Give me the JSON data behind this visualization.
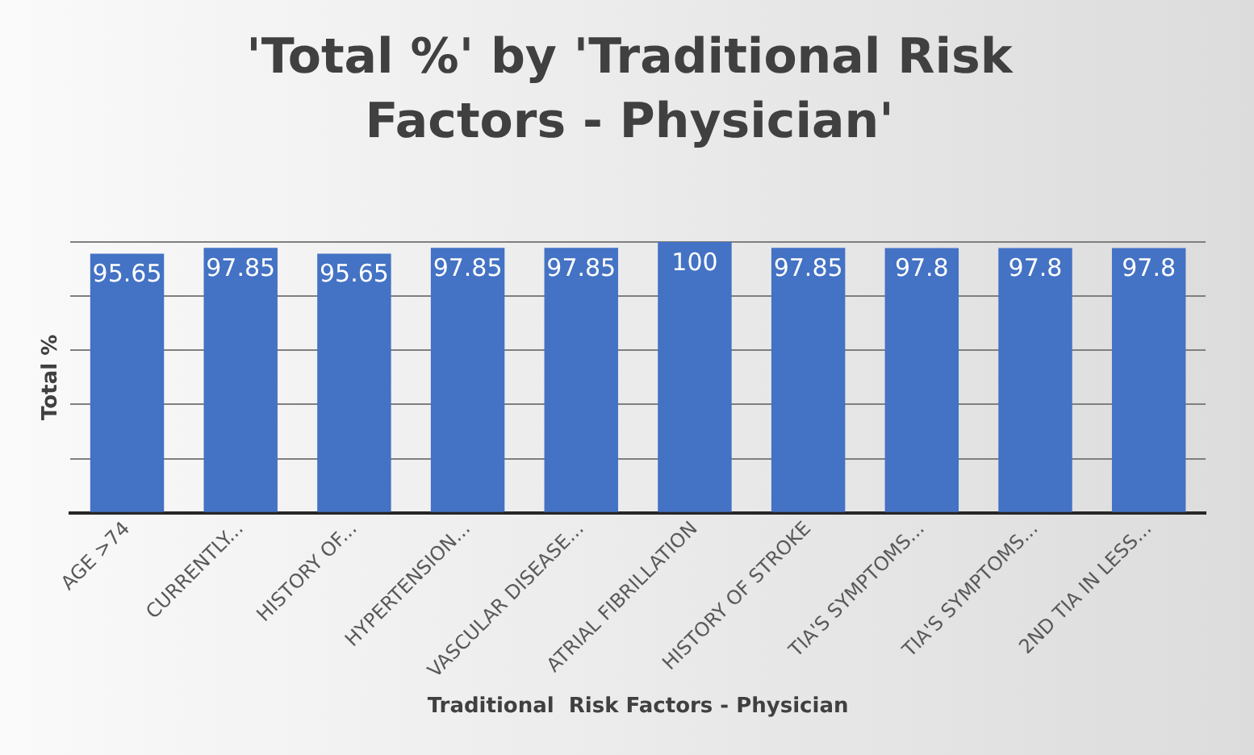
{
  "chart_data": {
    "type": "bar",
    "title": "'Total %' by 'Traditional Risk Factors - Physician'",
    "xlabel": "Traditional  Risk Factors - Physician",
    "ylabel": "Total %",
    "categories": [
      "AGE >74",
      "CURRENTLY...",
      "HISTORY OF...",
      "HYPERTENSION...",
      "VASCULAR DISEASE...",
      "ATRIAL FIBRILLATION",
      "HISTORY OF STROKE",
      "TIA'S SYMPTOMS...",
      "TIA'S SYMPTOMS...",
      "2ND TIA IN LESS..."
    ],
    "values": [
      95.65,
      97.85,
      95.65,
      97.85,
      97.85,
      100,
      97.85,
      97.8,
      97.8,
      97.8
    ],
    "color": "#4472c4",
    "data_labels": true,
    "grid": "y",
    "tick_labels": "x",
    "legend": false,
    "ylim": [
      0,
      100
    ],
    "yticks": [
      {
        "value": 0,
        "label": null
      },
      {
        "value": 20,
        "label": null
      },
      {
        "value": 40,
        "label": null
      },
      {
        "value": 60,
        "label": null
      },
      {
        "value": 80,
        "label": null
      },
      {
        "value": 100,
        "label": null
      }
    ]
  }
}
